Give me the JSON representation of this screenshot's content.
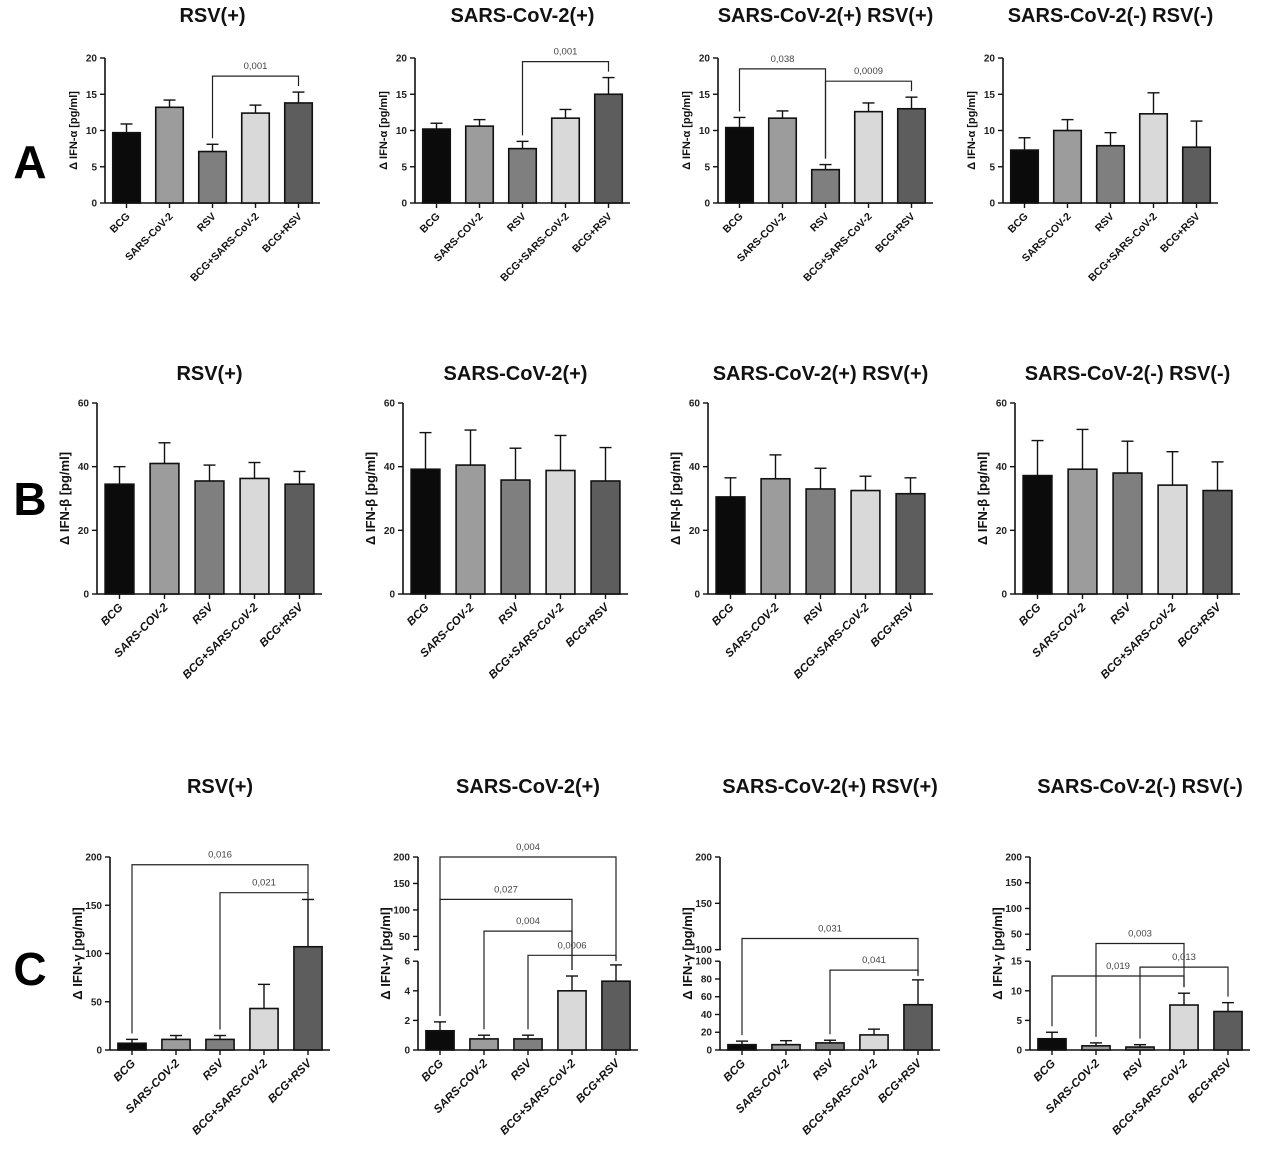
{
  "chart_data": [
    {
      "panel": "A",
      "type": "bar",
      "title": "RSV(+)",
      "ylabel": "Δ IFN-α [pg/ml]",
      "categories": [
        "BCG",
        "SARS-CoV-2",
        "RSV",
        "BCG+SARS-CoV-2",
        "BCG+RSV"
      ],
      "values": [
        9.7,
        13.2,
        7.1,
        12.4,
        13.8
      ],
      "errors": [
        1.2,
        1.0,
        1.0,
        1.1,
        1.5
      ],
      "ylim": [
        0,
        20
      ],
      "yticks": [
        0,
        5,
        10,
        15,
        20
      ],
      "brackets": [
        {
          "from": 2,
          "to": 4,
          "y": 17.5,
          "label": "0,001"
        }
      ]
    },
    {
      "type": "bar",
      "title": "SARS-CoV-2(+)",
      "ylabel": "Δ IFN-α [pg/ml]",
      "categories": [
        "BCG",
        "SARS-COV-2",
        "RSV",
        "BCG+SARS-CoV-2",
        "BCG+RSV"
      ],
      "values": [
        10.2,
        10.6,
        7.5,
        11.7,
        15.0
      ],
      "errors": [
        0.8,
        0.9,
        1.0,
        1.2,
        2.3
      ],
      "ylim": [
        0,
        20
      ],
      "yticks": [
        0,
        5,
        10,
        15,
        20
      ],
      "brackets": [
        {
          "from": 2,
          "to": 4,
          "y": 19.5,
          "label": "0,001"
        }
      ]
    },
    {
      "type": "bar",
      "title": "SARS-CoV-2(+) RSV(+)",
      "ylabel": "Δ IFN-α [pg/ml]",
      "categories": [
        "BCG",
        "SARS-COV-2",
        "RSV",
        "BCG+SARS-CoV-2",
        "BCG+RSV"
      ],
      "values": [
        10.4,
        11.7,
        4.6,
        12.6,
        13.0
      ],
      "errors": [
        1.4,
        1.0,
        0.7,
        1.2,
        1.6
      ],
      "ylim": [
        0,
        20
      ],
      "yticks": [
        0,
        5,
        10,
        15,
        20
      ],
      "brackets": [
        {
          "from": 0,
          "to": 2,
          "y": 18.5,
          "label": "0,038"
        },
        {
          "from": 2,
          "to": 4,
          "y": 16.8,
          "label": "0,0009"
        }
      ]
    },
    {
      "type": "bar",
      "title": "SARS-CoV-2(-) RSV(-)",
      "ylabel": "Δ IFN-α [pg/ml]",
      "categories": [
        "BCG",
        "SARS-COV-2",
        "RSV",
        "BCG+SARS-CoV-2",
        "BCG+RSV"
      ],
      "values": [
        7.3,
        10.0,
        7.9,
        12.3,
        7.7
      ],
      "errors": [
        1.7,
        1.5,
        1.8,
        2.9,
        3.6
      ],
      "ylim": [
        0,
        20
      ],
      "yticks": [
        0,
        5,
        10,
        15,
        20
      ],
      "brackets": []
    },
    {
      "panel": "B",
      "type": "bar",
      "title": "RSV(+)",
      "ylabel": "Δ IFN-β [pg/ml]",
      "categories": [
        "BCG",
        "SARS-COV-2",
        "RSV",
        "BCG+SARS-CoV-2",
        "BCG+RSV"
      ],
      "values": [
        34.5,
        41.0,
        35.5,
        36.3,
        34.5
      ],
      "errors": [
        5.5,
        6.5,
        5.0,
        5.0,
        4.0
      ],
      "ylim": [
        0,
        60
      ],
      "yticks": [
        0,
        20,
        40,
        60
      ],
      "brackets": []
    },
    {
      "type": "bar",
      "title": "SARS-CoV-2(+)",
      "ylabel": "Δ IFN-β [pg/ml]",
      "categories": [
        "BCG",
        "SARS-COV-2",
        "RSV",
        "BCG+SARS-CoV-2",
        "BCG+RSV"
      ],
      "values": [
        39.2,
        40.5,
        35.8,
        38.8,
        35.5
      ],
      "errors": [
        11.5,
        11.0,
        10.0,
        11.0,
        10.5
      ],
      "ylim": [
        0,
        60
      ],
      "yticks": [
        0,
        20,
        40,
        60
      ],
      "brackets": []
    },
    {
      "type": "bar",
      "title": "SARS-CoV-2(+) RSV(+)",
      "ylabel": "Δ IFN-β [pg/ml]",
      "categories": [
        "BCG",
        "SARS-COV-2",
        "RSV",
        "BCG+SARS-CoV-2",
        "BCG+RSV"
      ],
      "values": [
        30.5,
        36.2,
        33.0,
        32.5,
        31.5
      ],
      "errors": [
        6.0,
        7.5,
        6.5,
        4.5,
        5.0
      ],
      "ylim": [
        0,
        60
      ],
      "yticks": [
        0,
        20,
        40,
        60
      ],
      "brackets": []
    },
    {
      "type": "bar",
      "title": "SARS-CoV-2(-) RSV(-)",
      "ylabel": "Δ IFN-β [pg/ml]",
      "categories": [
        "BCG",
        "SARS-COV-2",
        "RSV",
        "BCG+SARS-CoV-2",
        "BCG+RSV"
      ],
      "values": [
        37.2,
        39.2,
        38.0,
        34.2,
        32.5
      ],
      "errors": [
        11.0,
        12.5,
        10.0,
        10.5,
        9.0
      ],
      "ylim": [
        0,
        60
      ],
      "yticks": [
        0,
        20,
        40,
        60
      ],
      "brackets": []
    },
    {
      "panel": "C",
      "type": "bar",
      "title": "RSV(+)",
      "ylabel": "Δ IFN-γ [pg/ml]",
      "categories": [
        "BCG",
        "SARS-COV-2",
        "RSV",
        "BCG+SARS-CoV-2",
        "BCG+RSV"
      ],
      "values": [
        7,
        11,
        11,
        43,
        107
      ],
      "errors": [
        4,
        4,
        4,
        25,
        49
      ],
      "ylim": [
        0,
        200
      ],
      "yticks": [
        0,
        50,
        100,
        150,
        200
      ],
      "brackets": [
        {
          "from": 0,
          "to": 4,
          "y": 192,
          "label": "0,016"
        },
        {
          "from": 2,
          "to": 4,
          "y": 163,
          "label": "0,021"
        }
      ]
    },
    {
      "type": "bar",
      "title": "SARS-CoV-2(+)",
      "ylabel": "Δ IFN-γ [pg/ml]",
      "categories": [
        "BCG",
        "SARS-COV-2",
        "RSV",
        "BCG+SARS-CoV-2",
        "BCG+RSV"
      ],
      "values": [
        1.3,
        0.75,
        0.75,
        4.0,
        4.65
      ],
      "errors": [
        0.6,
        0.25,
        0.25,
        1.0,
        1.1
      ],
      "axis_break": [
        {
          "range": [
            0,
            6
          ],
          "ticks": [
            0,
            2,
            4,
            6
          ]
        },
        {
          "range": [
            25,
            200
          ],
          "ticks": [
            50,
            100,
            150,
            200
          ]
        }
      ],
      "brackets": [
        {
          "from": 0,
          "to": 4,
          "y": 200,
          "seg": 1,
          "label": "0,004"
        },
        {
          "from": 0,
          "to": 3,
          "y": 120,
          "seg": 1,
          "label": "0,027"
        },
        {
          "from": 1,
          "to": 3,
          "y": 60,
          "seg": 1,
          "label": "0,004"
        },
        {
          "from": 2,
          "to": 4,
          "y": 6.4,
          "seg": 0,
          "label": "0,0006"
        }
      ]
    },
    {
      "type": "bar",
      "title": "SARS-CoV-2(+) RSV(+)",
      "ylabel": "Δ IFN-γ [pg/ml]",
      "categories": [
        "BCG",
        "SARS-COV-2",
        "RSV",
        "BCG+SARS-CoV-2",
        "BCG+RSV"
      ],
      "values": [
        6,
        6,
        8,
        17,
        51
      ],
      "errors": [
        4,
        4.5,
        3,
        6.5,
        28
      ],
      "axis_break": [
        {
          "range": [
            0,
            100
          ],
          "ticks": [
            0,
            20,
            40,
            60,
            80,
            100
          ]
        },
        {
          "range": [
            100,
            200
          ],
          "ticks": [
            100,
            150,
            200
          ]
        }
      ],
      "brackets": [
        {
          "from": 0,
          "to": 4,
          "y": 112,
          "seg": 1,
          "label": "0,031"
        },
        {
          "from": 2,
          "to": 4,
          "y": 90,
          "seg": 0,
          "label": "0,041"
        }
      ]
    },
    {
      "type": "bar",
      "title": "SARS-CoV-2(-) RSV(-)",
      "ylabel": "Δ IFN-γ [pg/ml]",
      "categories": [
        "BCG",
        "SARS-COV-2",
        "RSV",
        "BCG+SARS-CoV-2",
        "BCG+RSV"
      ],
      "values": [
        1.9,
        0.7,
        0.5,
        7.6,
        6.5
      ],
      "errors": [
        1.1,
        0.5,
        0.4,
        2.0,
        1.5
      ],
      "axis_break": [
        {
          "range": [
            20,
            200
          ],
          "ticks": [
            50,
            100,
            150,
            200
          ]
        },
        {
          "range": [
            0,
            15
          ],
          "ticks": [
            0,
            5,
            10,
            15
          ]
        }
      ],
      "brackets": [
        {
          "from": 1,
          "to": 3,
          "y": 32,
          "seg": 0,
          "label": "0,003"
        },
        {
          "from": 0,
          "to": 3,
          "y": 12.5,
          "seg": 1,
          "label": "0,019"
        },
        {
          "from": 2,
          "to": 4,
          "y": 14,
          "seg": 1,
          "label": "0,013"
        }
      ]
    }
  ],
  "panel_letters": [
    "A",
    "B",
    "C"
  ],
  "colors": {
    "BCG": "#0b0b0b",
    "SARS-CoV-2": "#9c9c9c",
    "RSV": "#7f7f7f",
    "BCG+SARS-CoV-2": "#d9d9d9",
    "BCG+RSV": "#5d5d5d"
  },
  "grid": false,
  "legend": "none"
}
